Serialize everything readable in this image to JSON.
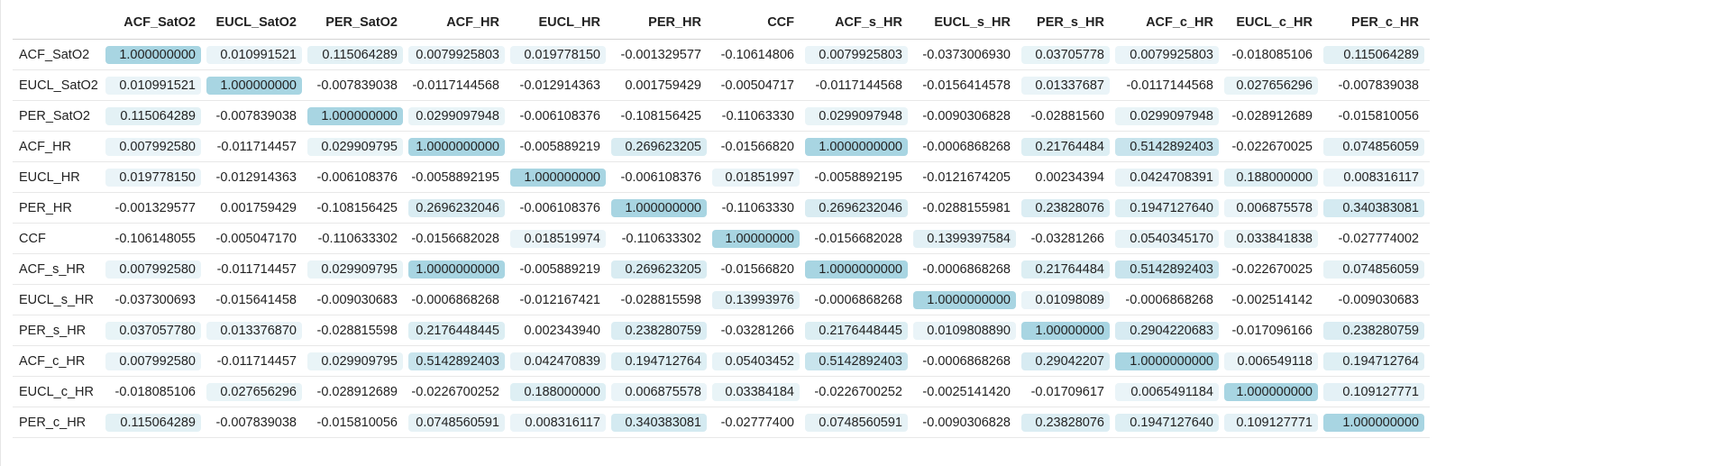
{
  "chart_data": {
    "type": "table",
    "columns": [
      "ACF_SatO2",
      "EUCL_SatO2",
      "PER_SatO2",
      "ACF_HR",
      "EUCL_HR",
      "PER_HR",
      "CCF",
      "ACF_s_HR",
      "EUCL_s_HR",
      "PER_s_HR",
      "ACF_c_HR",
      "EUCL_c_HR",
      "PER_c_HR"
    ],
    "rows": [
      {
        "label": "ACF_SatO2",
        "cells": [
          "1.000000000",
          "0.010991521",
          "0.115064289",
          "0.0079925803",
          "0.019778150",
          "-0.001329577",
          "-0.10614806",
          "0.0079925803",
          "-0.0373006930",
          "0.03705778",
          "0.0079925803",
          "-0.018085106",
          "0.115064289"
        ]
      },
      {
        "label": "EUCL_SatO2",
        "cells": [
          "0.010991521",
          "1.000000000",
          "-0.007839038",
          "-0.0117144568",
          "-0.012914363",
          "0.001759429",
          "-0.00504717",
          "-0.0117144568",
          "-0.0156414578",
          "0.01337687",
          "-0.0117144568",
          "0.027656296",
          "-0.007839038"
        ]
      },
      {
        "label": "PER_SatO2",
        "cells": [
          "0.115064289",
          "-0.007839038",
          "1.000000000",
          "0.0299097948",
          "-0.006108376",
          "-0.108156425",
          "-0.11063330",
          "0.0299097948",
          "-0.0090306828",
          "-0.02881560",
          "0.0299097948",
          "-0.028912689",
          "-0.015810056"
        ]
      },
      {
        "label": "ACF_HR",
        "cells": [
          "0.007992580",
          "-0.011714457",
          "0.029909795",
          "1.0000000000",
          "-0.005889219",
          "0.269623205",
          "-0.01566820",
          "1.0000000000",
          "-0.0006868268",
          "0.21764484",
          "0.5142892403",
          "-0.022670025",
          "0.074856059"
        ]
      },
      {
        "label": "EUCL_HR",
        "cells": [
          "0.019778150",
          "-0.012914363",
          "-0.006108376",
          "-0.0058892195",
          "1.000000000",
          "-0.006108376",
          "0.01851997",
          "-0.0058892195",
          "-0.0121674205",
          "0.00234394",
          "0.0424708391",
          "0.188000000",
          "0.008316117"
        ]
      },
      {
        "label": "PER_HR",
        "cells": [
          "-0.001329577",
          "0.001759429",
          "-0.108156425",
          "0.2696232046",
          "-0.006108376",
          "1.000000000",
          "-0.11063330",
          "0.2696232046",
          "-0.0288155981",
          "0.23828076",
          "0.1947127640",
          "0.006875578",
          "0.340383081"
        ]
      },
      {
        "label": "CCF",
        "cells": [
          "-0.106148055",
          "-0.005047170",
          "-0.110633302",
          "-0.0156682028",
          "0.018519974",
          "-0.110633302",
          "1.00000000",
          "-0.0156682028",
          "0.1399397584",
          "-0.03281266",
          "0.0540345170",
          "0.033841838",
          "-0.027774002"
        ]
      },
      {
        "label": "ACF_s_HR",
        "cells": [
          "0.007992580",
          "-0.011714457",
          "0.029909795",
          "1.0000000000",
          "-0.005889219",
          "0.269623205",
          "-0.01566820",
          "1.0000000000",
          "-0.0006868268",
          "0.21764484",
          "0.5142892403",
          "-0.022670025",
          "0.074856059"
        ]
      },
      {
        "label": "EUCL_s_HR",
        "cells": [
          "-0.037300693",
          "-0.015641458",
          "-0.009030683",
          "-0.0006868268",
          "-0.012167421",
          "-0.028815598",
          "0.13993976",
          "-0.0006868268",
          "1.0000000000",
          "0.01098089",
          "-0.0006868268",
          "-0.002514142",
          "-0.009030683"
        ]
      },
      {
        "label": "PER_s_HR",
        "cells": [
          "0.037057780",
          "0.013376870",
          "-0.028815598",
          "0.2176448445",
          "0.002343940",
          "0.238280759",
          "-0.03281266",
          "0.2176448445",
          "0.0109808890",
          "1.00000000",
          "0.2904220683",
          "-0.017096166",
          "0.238280759"
        ]
      },
      {
        "label": "ACF_c_HR",
        "cells": [
          "0.007992580",
          "-0.011714457",
          "0.029909795",
          "0.5142892403",
          "0.042470839",
          "0.194712764",
          "0.05403452",
          "0.5142892403",
          "-0.0006868268",
          "0.29042207",
          "1.0000000000",
          "0.006549118",
          "0.194712764"
        ]
      },
      {
        "label": "EUCL_c_HR",
        "cells": [
          "-0.018085106",
          "0.027656296",
          "-0.028912689",
          "-0.0226700252",
          "0.188000000",
          "0.006875578",
          "0.03384184",
          "-0.0226700252",
          "-0.0025141420",
          "-0.01709617",
          "0.0065491184",
          "1.000000000",
          "0.109127771"
        ]
      },
      {
        "label": "PER_c_HR",
        "cells": [
          "0.115064289",
          "-0.007839038",
          "-0.015810056",
          "0.0748560591",
          "0.008316117",
          "0.340383081",
          "-0.02777400",
          "0.0748560591",
          "-0.0090306828",
          "0.23828076",
          "0.1947127640",
          "0.109127771",
          "1.000000000"
        ]
      }
    ]
  },
  "colors": {
    "highlight_max": "#a8d5e2",
    "highlight_min": "#f4f9fb"
  }
}
